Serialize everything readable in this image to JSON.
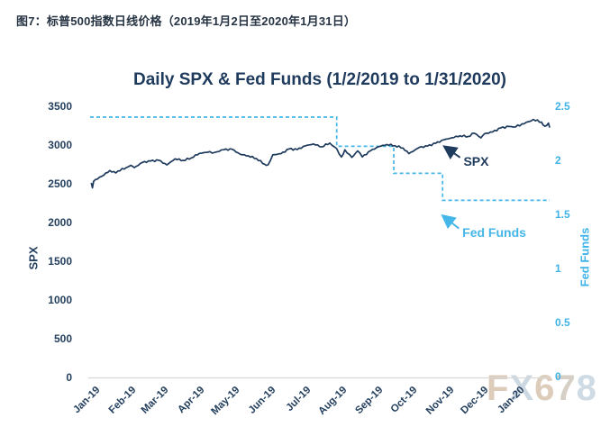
{
  "page": {
    "header": "图7：标普500指数日线价格（2019年1月2日至2020年1月31日）",
    "watermark": {
      "text": "FX678",
      "letter_colors": [
        "#ddccba",
        "#cdd9e2",
        "#ddccba",
        "#d6cfc6",
        "#cfdbe4"
      ]
    }
  },
  "colors": {
    "spx": "#1e3a5c",
    "fed_funds": "#45b6e8",
    "axis_line": "#d8d8d8",
    "title": "#1e3a5c"
  },
  "chart_data": {
    "type": "line",
    "title": "Daily SPX & Fed Funds (1/2/2019 to 1/31/2020)",
    "grid": "off",
    "x_axis": {
      "months": [
        {
          "label": "Jan-19",
          "day": 0
        },
        {
          "label": "Feb-19",
          "day": 31
        },
        {
          "label": "Mar-19",
          "day": 59
        },
        {
          "label": "Apr-19",
          "day": 90
        },
        {
          "label": "May-19",
          "day": 120
        },
        {
          "label": "Jun-19",
          "day": 151
        },
        {
          "label": "Jul-19",
          "day": 181
        },
        {
          "label": "Aug-19",
          "day": 212
        },
        {
          "label": "Sep-19",
          "day": 243
        },
        {
          "label": "Oct-19",
          "day": 273
        },
        {
          "label": "Nov-19",
          "day": 304
        },
        {
          "label": "Dec-19",
          "day": 334
        },
        {
          "label": "Jan-20",
          "day": 365
        }
      ],
      "range_days": [
        0,
        395
      ]
    },
    "left_axis": {
      "label": "SPX",
      "ticks": [
        3500,
        3000,
        2500,
        2000,
        1500,
        1000,
        500,
        0
      ],
      "range": [
        0,
        3500
      ]
    },
    "right_axis": {
      "label": "Fed Funds",
      "ticks": [
        2.5,
        2,
        1.5,
        1,
        0.5,
        0
      ],
      "range": [
        0,
        2.5
      ]
    },
    "series": [
      {
        "name": "SPX",
        "axis": "left",
        "color": "#1e3a5c",
        "style": "solid",
        "points": [
          [
            1,
            2510
          ],
          [
            2,
            2448
          ],
          [
            3,
            2532
          ],
          [
            8,
            2584
          ],
          [
            10,
            2596
          ],
          [
            17,
            2671
          ],
          [
            22,
            2639
          ],
          [
            24,
            2665
          ],
          [
            31,
            2707
          ],
          [
            35,
            2738
          ],
          [
            38,
            2708
          ],
          [
            45,
            2776
          ],
          [
            52,
            2793
          ],
          [
            59,
            2804
          ],
          [
            66,
            2743
          ],
          [
            73,
            2822
          ],
          [
            80,
            2801
          ],
          [
            87,
            2834
          ],
          [
            94,
            2893
          ],
          [
            101,
            2907
          ],
          [
            107,
            2905
          ],
          [
            115,
            2940
          ],
          [
            122,
            2946
          ],
          [
            129,
            2881
          ],
          [
            136,
            2860
          ],
          [
            143,
            2826
          ],
          [
            150,
            2752
          ],
          [
            153,
            2744
          ],
          [
            157,
            2873
          ],
          [
            164,
            2887
          ],
          [
            171,
            2950
          ],
          [
            178,
            2942
          ],
          [
            185,
            2990
          ],
          [
            192,
            3014
          ],
          [
            199,
            2977
          ],
          [
            206,
            3026
          ],
          [
            212,
            2953
          ],
          [
            216,
            2845
          ],
          [
            219,
            2938
          ],
          [
            225,
            2841
          ],
          [
            230,
            2924
          ],
          [
            234,
            2847
          ],
          [
            241,
            2926
          ],
          [
            248,
            2979
          ],
          [
            255,
            3007
          ],
          [
            262,
            2992
          ],
          [
            269,
            2962
          ],
          [
            274,
            2888
          ],
          [
            283,
            2970
          ],
          [
            290,
            2986
          ],
          [
            297,
            3023
          ],
          [
            304,
            3067
          ],
          [
            311,
            3093
          ],
          [
            318,
            3120
          ],
          [
            325,
            3110
          ],
          [
            330,
            3154
          ],
          [
            336,
            3093
          ],
          [
            339,
            3146
          ],
          [
            346,
            3169
          ],
          [
            353,
            3221
          ],
          [
            360,
            3240
          ],
          [
            364,
            3231
          ],
          [
            373,
            3275
          ],
          [
            381,
            3330
          ],
          [
            388,
            3295
          ],
          [
            391,
            3243
          ],
          [
            394,
            3284
          ],
          [
            395,
            3226
          ]
        ]
      },
      {
        "name": "Fed Funds",
        "axis": "right",
        "color": "#45b6e8",
        "style": "dashed",
        "segments": [
          {
            "from_day": 0,
            "to_day": 212,
            "rate": 2.4
          },
          {
            "from_day": 212,
            "to_day": 261,
            "rate": 2.13
          },
          {
            "from_day": 261,
            "to_day": 303,
            "rate": 1.88
          },
          {
            "from_day": 303,
            "to_day": 395,
            "rate": 1.63
          }
        ]
      }
    ],
    "annotations": [
      {
        "text": "SPX",
        "axis": "left",
        "arrow_from_day": 318,
        "arrow_from_value": 2840,
        "arrow_to_day": 305.5,
        "arrow_to_value": 2970,
        "label_day": 321,
        "label_value": 2792
      },
      {
        "text": "Fed Funds",
        "axis": "right",
        "arrow_from_day": 317,
        "arrow_from_value": 1.37,
        "arrow_to_day": 304,
        "arrow_to_value": 1.48,
        "label_day": 320,
        "label_value": 1.33
      }
    ]
  }
}
